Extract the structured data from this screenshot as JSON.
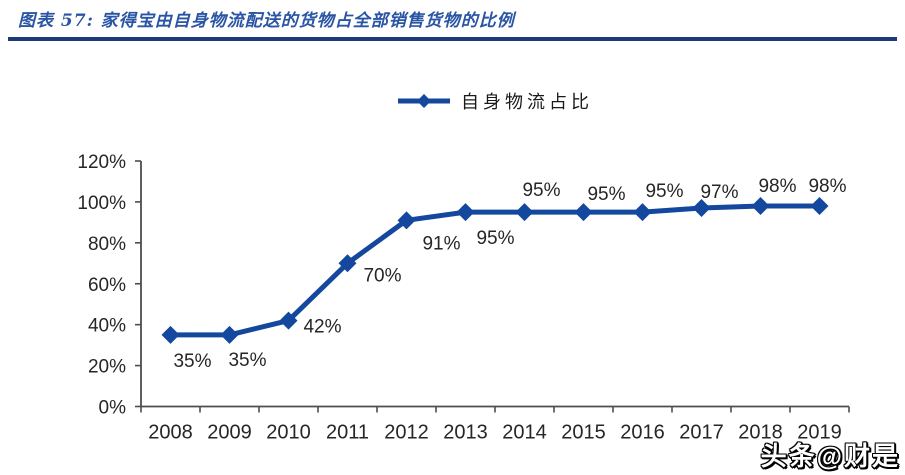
{
  "header": {
    "figure_label": "图表 57:",
    "title": "图表 57:  家得宝由自身物流配送的货物占全部销售货物的比例"
  },
  "legend": {
    "label": "自身物流占比"
  },
  "watermark": {
    "text": "头条@财是"
  },
  "colors": {
    "line": "#14489E",
    "marker": "#14489E",
    "title_text": "#2A55A4",
    "rule": "#1B3C78",
    "axis": "#4D4D4D",
    "label_text": "#262626"
  },
  "chart_data": {
    "type": "line",
    "title": "家得宝由自身物流配送的货物占全部销售货物的比例",
    "legend_position": "top-center",
    "grid": false,
    "categories": [
      "2008",
      "2009",
      "2010",
      "2011",
      "2012",
      "2013",
      "2014",
      "2015",
      "2016",
      "2017",
      "2018",
      "2019"
    ],
    "series": [
      {
        "name": "自身物流占比",
        "values": [
          35,
          35,
          42,
          70,
          91,
          95,
          95,
          95,
          95,
          97,
          98,
          98
        ],
        "labels": [
          "35%",
          "35%",
          "42%",
          "70%",
          "91%",
          "95%",
          "95%",
          "95%",
          "95%",
          "97%",
          "98%",
          "98%"
        ],
        "label_offsets": [
          [
            22,
            32
          ],
          [
            18,
            31
          ],
          [
            34,
            12
          ],
          [
            35,
            18
          ],
          [
            35,
            29
          ],
          [
            30,
            32
          ],
          [
            17,
            -16
          ],
          [
            23,
            -12
          ],
          [
            22,
            -15
          ],
          [
            18,
            -10
          ],
          [
            17,
            -14
          ],
          [
            8,
            -14
          ]
        ]
      }
    ],
    "xlabel": "",
    "ylabel": "",
    "ylim": [
      0,
      120
    ],
    "ytick_step": 20,
    "ytick_labels": [
      "0%",
      "20%",
      "40%",
      "60%",
      "80%",
      "100%",
      "120%"
    ]
  }
}
